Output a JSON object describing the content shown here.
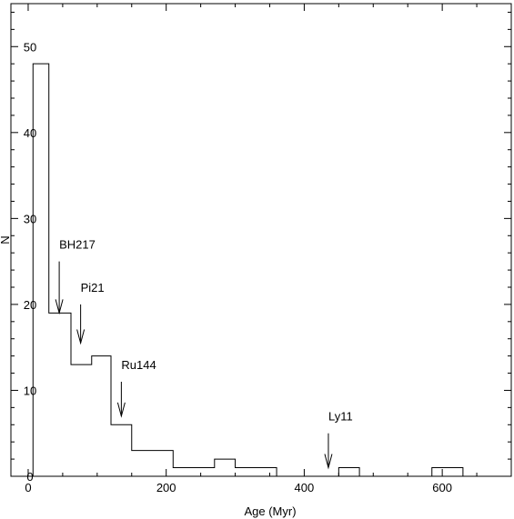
{
  "chart_data": {
    "type": "bar",
    "style": "step-histogram",
    "xlabel": "Age (Myr)",
    "ylabel": "N",
    "xlim": [
      -25,
      700
    ],
    "ylim": [
      0,
      55
    ],
    "xticks": [
      0,
      200,
      400,
      600
    ],
    "yticks": [
      0,
      10,
      20,
      30,
      40,
      50
    ],
    "bins": [
      {
        "start": 7,
        "end": 30,
        "count": 48
      },
      {
        "start": 30,
        "end": 62,
        "count": 19
      },
      {
        "start": 62,
        "end": 92,
        "count": 13
      },
      {
        "start": 92,
        "end": 120,
        "count": 14
      },
      {
        "start": 120,
        "end": 150,
        "count": 6
      },
      {
        "start": 150,
        "end": 210,
        "count": 3
      },
      {
        "start": 210,
        "end": 270,
        "count": 1
      },
      {
        "start": 270,
        "end": 300,
        "count": 2
      },
      {
        "start": 300,
        "end": 360,
        "count": 1
      },
      {
        "start": 360,
        "end": 450,
        "count": 0
      },
      {
        "start": 450,
        "end": 480,
        "count": 1
      },
      {
        "start": 480,
        "end": 585,
        "count": 0
      },
      {
        "start": 585,
        "end": 630,
        "count": 1
      },
      {
        "start": 630,
        "end": 685,
        "count": 0
      }
    ],
    "annotations": [
      {
        "label": "BH217",
        "x": 45,
        "y_top": 25,
        "y_tip": 19
      },
      {
        "label": "Pi21",
        "x": 76,
        "y_top": 20,
        "y_tip": 15.5
      },
      {
        "label": "Ru144",
        "x": 135,
        "y_top": 11,
        "y_tip": 7
      },
      {
        "label": "Ly11",
        "x": 435,
        "y_top": 5,
        "y_tip": 1
      }
    ],
    "grid": false,
    "legend": null,
    "colors": {
      "line": "#000000",
      "background": "#ffffff"
    }
  }
}
